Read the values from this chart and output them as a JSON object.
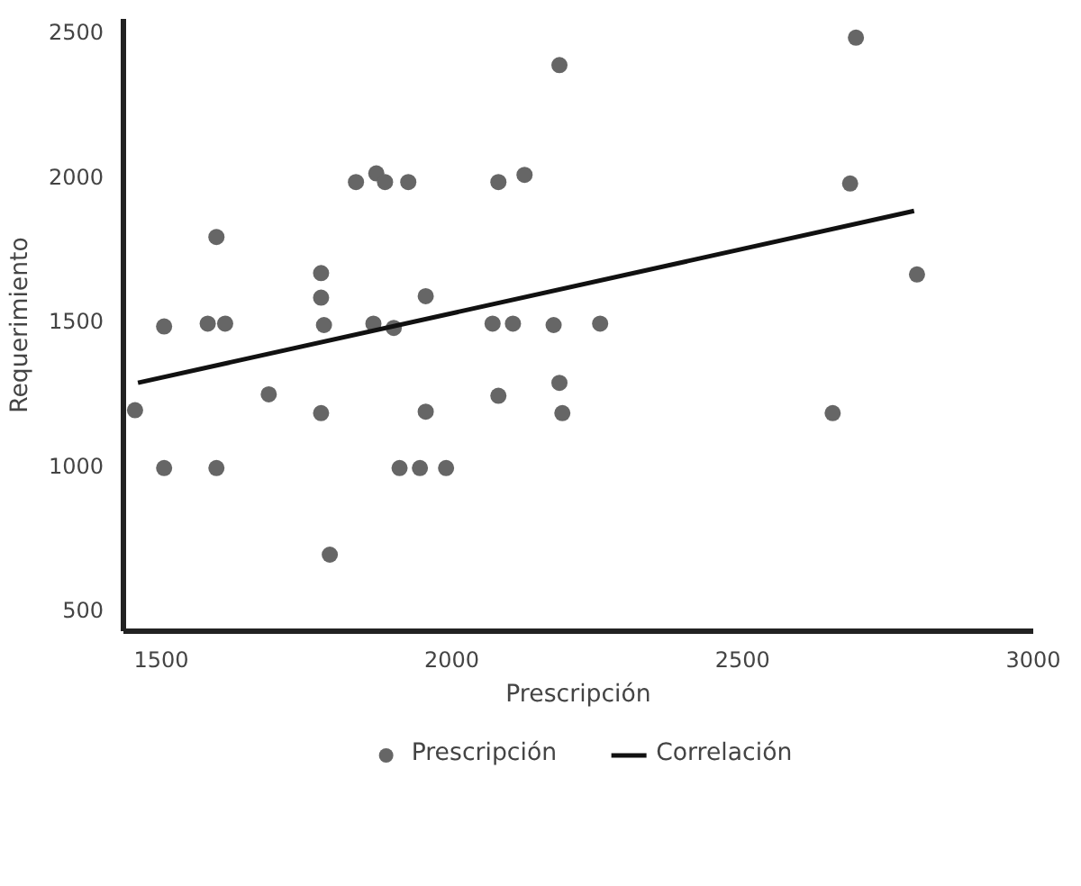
{
  "chart_data": {
    "type": "scatter",
    "xlabel": "Prescripción",
    "ylabel": "Requerimiento",
    "xlim": [
      1435,
      3000
    ],
    "ylim": [
      425,
      2545
    ],
    "xticks": [
      1500,
      2000,
      2500,
      3000
    ],
    "yticks": [
      500,
      1000,
      1500,
      2000,
      2500
    ],
    "grid": false,
    "legend": "bottom",
    "series": [
      {
        "name": "Prescripción",
        "marker": "circle",
        "color": "#666666",
        "x": [
          1455,
          1505,
          1505,
          1580,
          1610,
          1595,
          1595,
          1685,
          1775,
          1775,
          1780,
          1775,
          1790,
          1835,
          1870,
          1885,
          1925,
          1865,
          1900,
          1955,
          1955,
          1910,
          1945,
          1990,
          2080,
          2125,
          2185,
          2070,
          2105,
          2175,
          2255,
          2080,
          2185,
          2190,
          2695,
          2685,
          2655,
          2800
        ],
        "values": [
          1190,
          1480,
          990,
          1490,
          1490,
          1790,
          990,
          1245,
          1665,
          1580,
          1485,
          1180,
          690,
          1980,
          2010,
          1980,
          1980,
          1490,
          1475,
          1585,
          1185,
          990,
          990,
          990,
          1980,
          2005,
          2385,
          1490,
          1490,
          1485,
          1490,
          1240,
          1285,
          1180,
          2480,
          1975,
          1180,
          1660
        ]
      },
      {
        "name": "Correlación",
        "type": "line",
        "color": "#111111",
        "marker": "none",
        "line_style": "solid",
        "x": [
          1460,
          2795
        ],
        "values": [
          1285,
          1880
        ]
      }
    ]
  }
}
